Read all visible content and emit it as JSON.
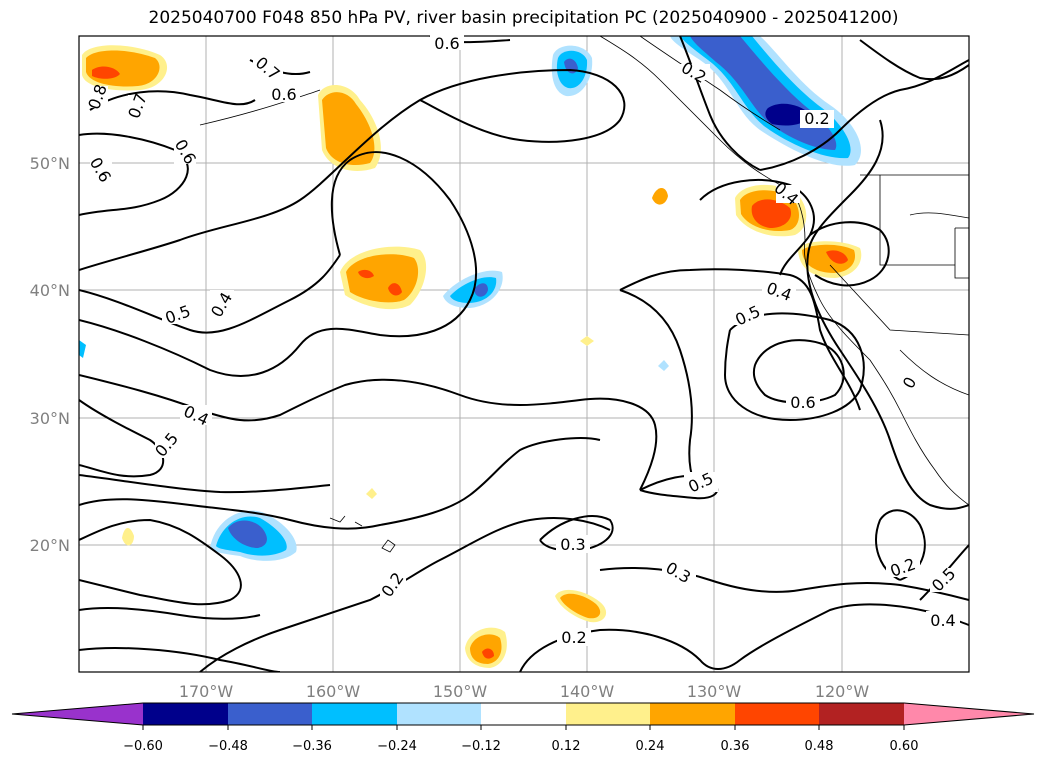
{
  "title": "2025040700 F048 850 hPa PV, river basin precipitation PC (2025040900 - 2025041200)",
  "map": {
    "lon_labels": [
      "170°W",
      "160°W",
      "150°W",
      "140°W",
      "130°W",
      "120°W"
    ],
    "lat_labels": [
      "50°N",
      "40°N",
      "30°N",
      "20°N"
    ]
  },
  "contour_labels": [
    {
      "id": "c1",
      "text": "0.6"
    },
    {
      "id": "c2",
      "text": "0.7"
    },
    {
      "id": "c3",
      "text": "0.6"
    },
    {
      "id": "c4",
      "text": "0.8"
    },
    {
      "id": "c5",
      "text": "0.7"
    },
    {
      "id": "c6",
      "text": "0.6"
    },
    {
      "id": "c7",
      "text": "0.6"
    },
    {
      "id": "c8",
      "text": "0.2"
    },
    {
      "id": "c9",
      "text": "0.2"
    },
    {
      "id": "c10",
      "text": "0.4"
    },
    {
      "id": "c11",
      "text": "0.5"
    },
    {
      "id": "c12",
      "text": "0.4"
    },
    {
      "id": "c13",
      "text": "0.5"
    },
    {
      "id": "c14",
      "text": "0.4"
    },
    {
      "id": "c15",
      "text": "0.6"
    },
    {
      "id": "c16",
      "text": "0.4"
    },
    {
      "id": "c17",
      "text": "0.5"
    },
    {
      "id": "c18",
      "text": "0.5"
    },
    {
      "id": "c19",
      "text": "0.3"
    },
    {
      "id": "c20",
      "text": "0.3"
    },
    {
      "id": "c21",
      "text": "0.2"
    },
    {
      "id": "c22",
      "text": "0.2"
    },
    {
      "id": "c23",
      "text": "0.2"
    },
    {
      "id": "c24",
      "text": "0.5"
    },
    {
      "id": "c25",
      "text": "0.4"
    },
    {
      "id": "c26",
      "text": "0"
    }
  ],
  "colorbar": {
    "ticks": [
      "−0.60",
      "−0.48",
      "−0.36",
      "−0.24",
      "−0.12",
      "0.12",
      "0.24",
      "0.36",
      "0.48",
      "0.60"
    ],
    "colors": [
      "#9932cc",
      "#00008b",
      "#3a5fcd",
      "#00bfff",
      "#b0e2ff",
      "#ffffff",
      "#fff08c",
      "#ffa500",
      "#ff4500",
      "#b22222",
      "#ff88aa"
    ]
  }
}
